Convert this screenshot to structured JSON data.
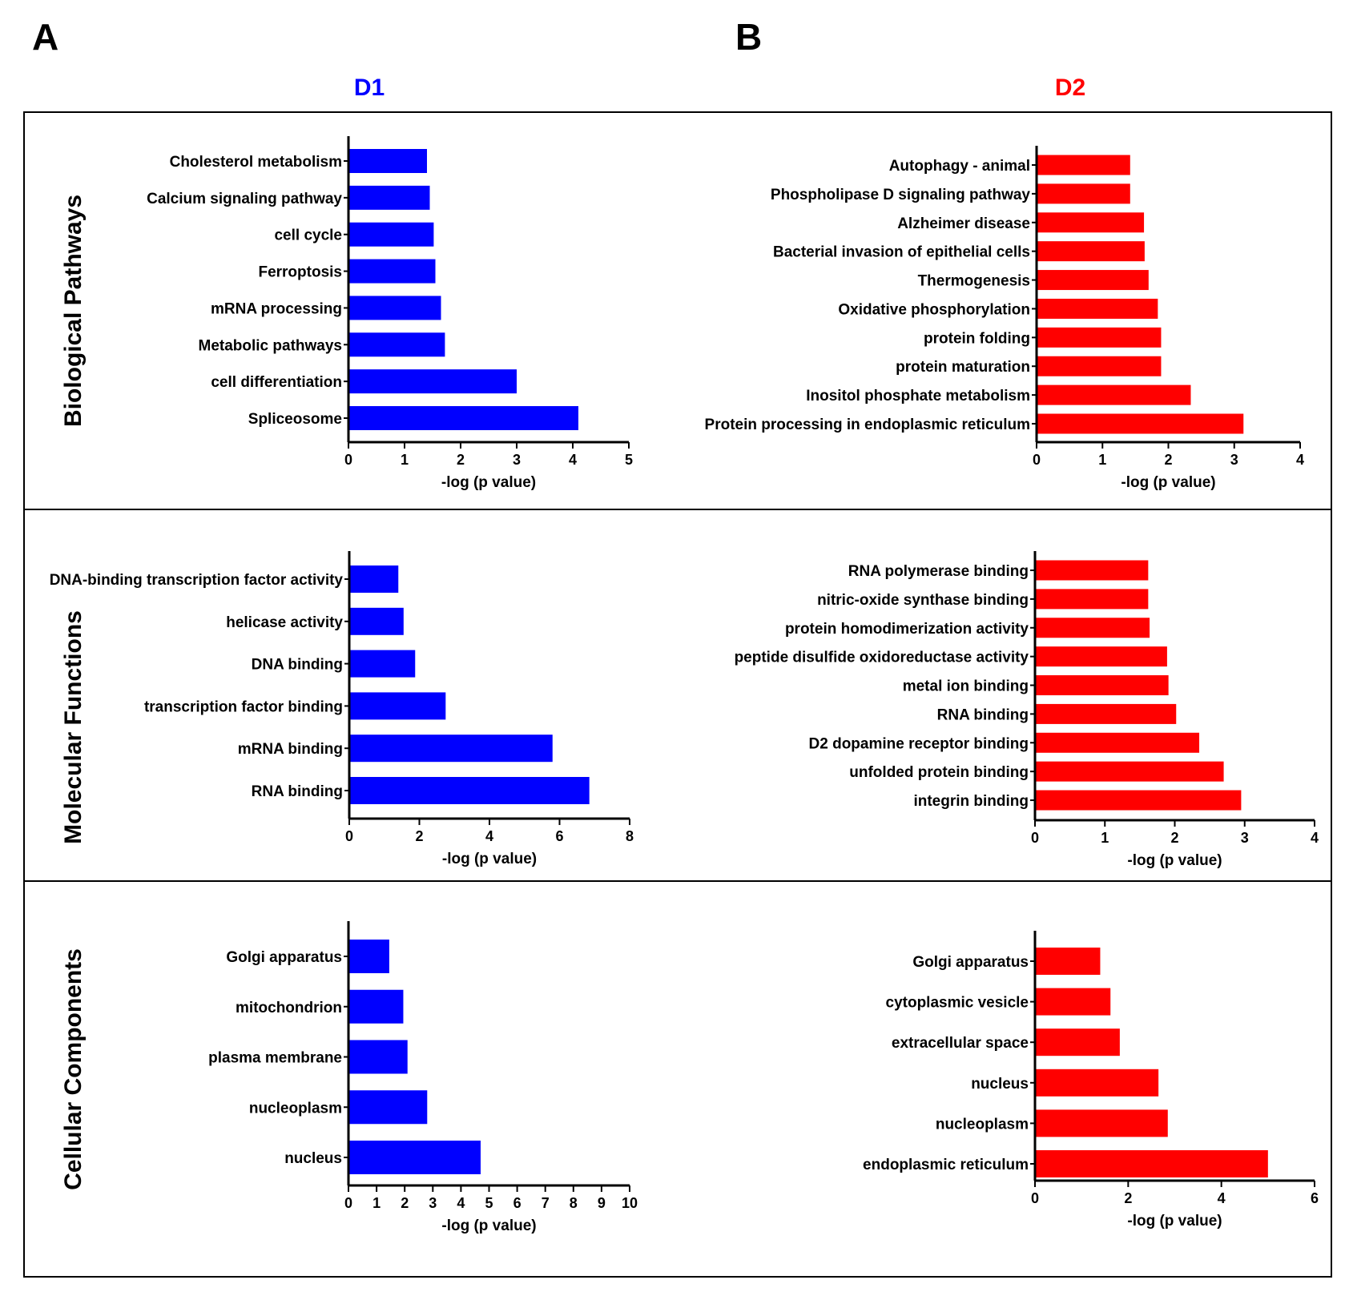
{
  "figure": {
    "panel_a": "A",
    "panel_b": "B",
    "column_titles": [
      "D1",
      "D2"
    ],
    "row_titles": [
      "Biological Pathways",
      "Molecular Functions",
      "Cellular Components"
    ],
    "colors": {
      "D1": "#0000ff",
      "D2": "#ff0000",
      "axis": "#000000",
      "frame": "#000000"
    }
  },
  "chart_data": [
    {
      "id": "d1-biological-pathways",
      "type": "bar",
      "orientation": "horizontal",
      "series_name": "D1",
      "row": "Biological Pathways",
      "categories": [
        "Cholesterol metabolism",
        "Calcium signaling pathway",
        "cell cycle",
        "Ferroptosis",
        "mRNA processing",
        "Metabolic pathways",
        "cell differentiation",
        "Spliceosome"
      ],
      "values": [
        1.4,
        1.45,
        1.52,
        1.55,
        1.65,
        1.72,
        3.0,
        4.1
      ],
      "xlim": [
        0,
        5
      ],
      "xticks": [
        0,
        1,
        2,
        3,
        4,
        5
      ],
      "xlabel": "-log (p value)"
    },
    {
      "id": "d2-biological-pathways",
      "type": "bar",
      "orientation": "horizontal",
      "series_name": "D2",
      "row": "Biological Pathways",
      "categories": [
        "Autophagy - animal",
        "Phospholipase D signaling pathway",
        "Alzheimer disease",
        "Bacterial invasion of epithelial cells",
        "Thermogenesis",
        "Oxidative phosphorylation",
        "protein folding",
        "protein maturation",
        "Inositol phosphate metabolism",
        "Protein processing in endoplasmic reticulum"
      ],
      "values": [
        1.42,
        1.42,
        1.63,
        1.64,
        1.7,
        1.84,
        1.89,
        1.89,
        2.34,
        3.14
      ],
      "xlim": [
        0,
        4
      ],
      "xticks": [
        0,
        1,
        2,
        3,
        4
      ],
      "xlabel": "-log (p value)"
    },
    {
      "id": "d1-molecular-functions",
      "type": "bar",
      "orientation": "horizontal",
      "series_name": "D1",
      "row": "Molecular Functions",
      "categories": [
        "DNA-binding transcription factor activity",
        "helicase activity",
        "DNA binding",
        "transcription factor binding",
        "mRNA binding",
        "RNA binding"
      ],
      "values": [
        1.4,
        1.55,
        1.88,
        2.75,
        5.8,
        6.85
      ],
      "xlim": [
        0,
        8
      ],
      "xticks": [
        0,
        2,
        4,
        6,
        8
      ],
      "xlabel": "-log (p value)"
    },
    {
      "id": "d2-molecular-functions",
      "type": "bar",
      "orientation": "horizontal",
      "series_name": "D2",
      "row": "Molecular Functions",
      "categories": [
        "RNA polymerase binding",
        "nitric-oxide synthase binding",
        "protein homodimerization activity",
        "peptide disulfide oxidoreductase activity",
        "metal ion binding",
        "RNA binding",
        "D2 dopamine receptor binding",
        "unfolded protein binding",
        "integrin binding"
      ],
      "values": [
        1.62,
        1.62,
        1.64,
        1.89,
        1.91,
        2.02,
        2.35,
        2.7,
        2.95
      ],
      "xlim": [
        0,
        4
      ],
      "xticks": [
        0,
        1,
        2,
        3,
        4
      ],
      "xlabel": "-log (p value)"
    },
    {
      "id": "d1-cellular-components",
      "type": "bar",
      "orientation": "horizontal",
      "series_name": "D1",
      "row": "Cellular Components",
      "categories": [
        "Golgi apparatus",
        "mitochondrion",
        "plasma membrane",
        "nucleoplasm",
        "nucleus"
      ],
      "values": [
        1.45,
        1.95,
        2.1,
        2.8,
        4.7
      ],
      "xlim": [
        0,
        10
      ],
      "xticks": [
        0,
        1,
        2,
        3,
        4,
        5,
        6,
        7,
        8,
        9,
        10
      ],
      "xlabel": "-log (p value)"
    },
    {
      "id": "d2-cellular-components",
      "type": "bar",
      "orientation": "horizontal",
      "series_name": "D2",
      "row": "Cellular Components",
      "categories": [
        "Golgi apparatus",
        "cytoplasmic vesicle",
        "extracellular space",
        "nucleus",
        "nucleoplasm",
        "endoplasmic reticulum"
      ],
      "values": [
        1.4,
        1.62,
        1.82,
        2.65,
        2.85,
        5.0
      ],
      "xlim": [
        0,
        6
      ],
      "xticks": [
        0,
        2,
        4,
        6
      ],
      "xlabel": "-log (p value)"
    }
  ]
}
